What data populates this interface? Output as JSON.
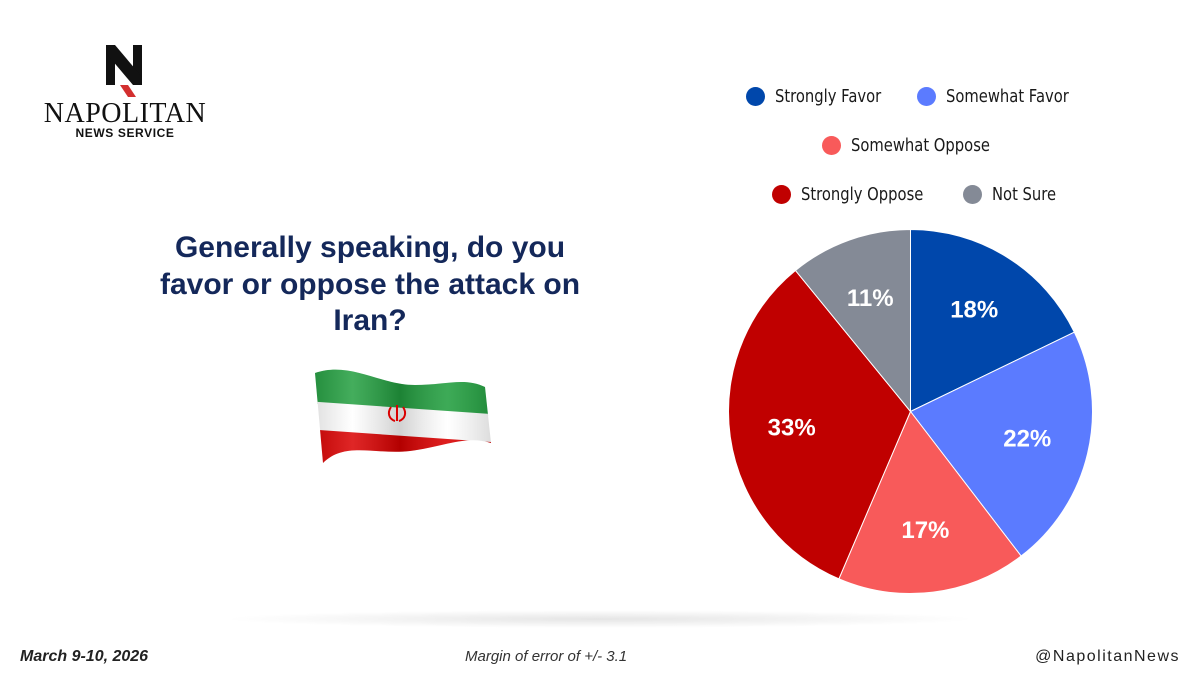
{
  "brand": {
    "name": "NAPOLITAN",
    "sub": "NEWS SERVICE",
    "logo_letter": "N",
    "colors": {
      "dark": "#111111",
      "accent": "#d32f2f"
    }
  },
  "question": "Generally speaking, do you favor or oppose the attack on Iran?",
  "flag": {
    "icon": "iran-flag-icon",
    "colors": [
      "#239f40",
      "#ffffff",
      "#da0000"
    ]
  },
  "legend": [
    {
      "label": "Strongly Favor",
      "color": "#0047ab"
    },
    {
      "label": "Somewhat Favor",
      "color": "#5b7bff"
    },
    {
      "label": "Somewhat Oppose",
      "color": "#f85a5a"
    },
    {
      "label": "Strongly Oppose",
      "color": "#c00000"
    },
    {
      "label": "Not Sure",
      "color": "#848a96"
    }
  ],
  "chart_data": {
    "type": "pie",
    "categories": [
      "Strongly Favor",
      "Somewhat Favor",
      "Somewhat Oppose",
      "Strongly Oppose",
      "Not Sure"
    ],
    "values": [
      18,
      22,
      17,
      33,
      11
    ],
    "labels": [
      "18%",
      "22%",
      "17%",
      "33%",
      "11%"
    ],
    "colors": [
      "#0047ab",
      "#5b7bff",
      "#f85a5a",
      "#c00000",
      "#848a96"
    ],
    "start": "12 o'clock",
    "direction": "clockwise",
    "legend_position": "top-right"
  },
  "footer": {
    "date": "March 9-10, 2026",
    "margin_of_error": "Margin of error of +/- 3.1",
    "handle": "@NapolitanNews"
  }
}
